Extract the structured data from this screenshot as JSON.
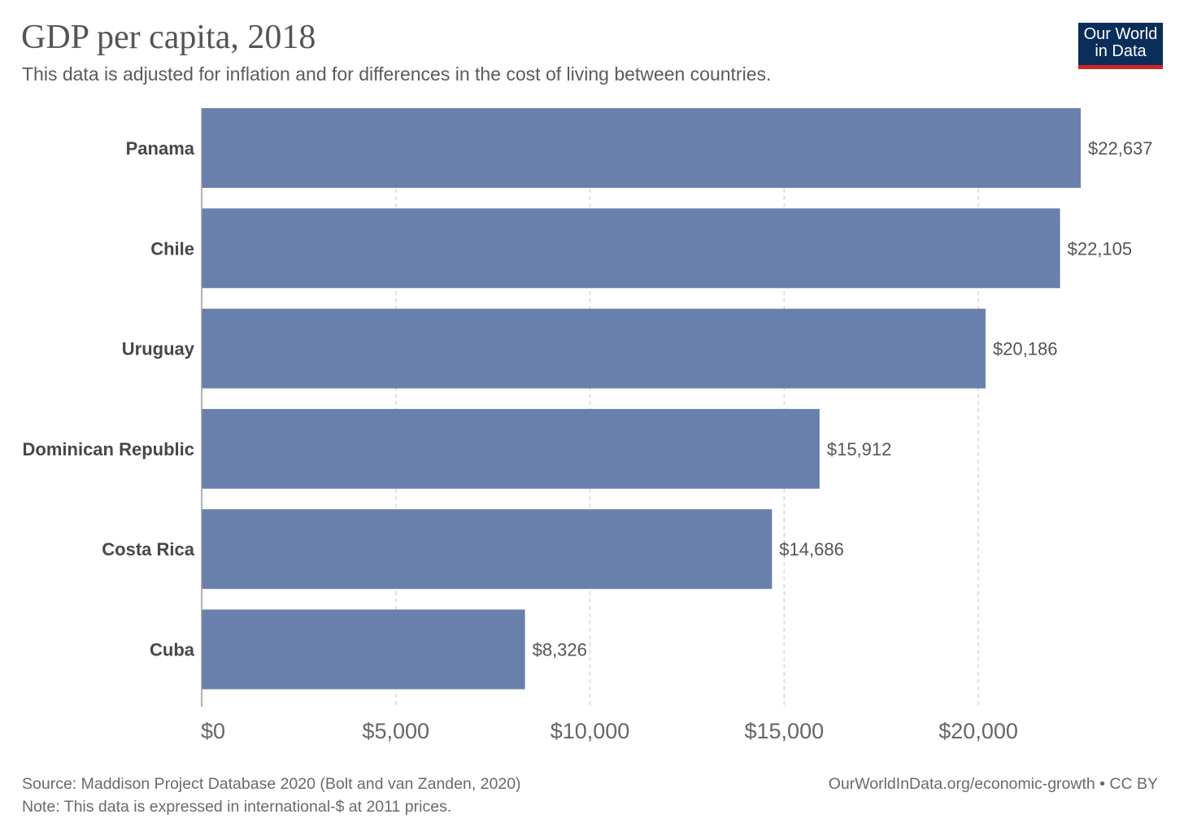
{
  "header": {
    "title": "GDP per capita, 2018",
    "subtitle": "This data is adjusted for inflation and for differences in the cost of living between countries.",
    "logo_line1": "Our World",
    "logo_line2": "in Data"
  },
  "footer": {
    "source": "Source: Maddison Project Database 2020 (Bolt and van Zanden, 2020)",
    "note": "Note: This data is expressed in international-$ at 2011 prices.",
    "link": "OurWorldInData.org/economic-growth • CC BY"
  },
  "colors": {
    "bar": "#6880ab",
    "logo_bg": "#0b2d59",
    "logo_accent": "#ce261e"
  },
  "chart_data": {
    "type": "bar",
    "orientation": "horizontal",
    "title": "GDP per capita, 2018",
    "subtitle": "This data is adjusted for inflation and for differences in the cost of living between countries.",
    "categories": [
      "Panama",
      "Chile",
      "Uruguay",
      "Dominican Republic",
      "Costa Rica",
      "Cuba"
    ],
    "values": [
      22637,
      22105,
      20186,
      15912,
      14686,
      8326
    ],
    "value_labels": [
      "$22,637",
      "$22,105",
      "$20,186",
      "$15,912",
      "$14,686",
      "$8,326"
    ],
    "xticks": [
      0,
      5000,
      10000,
      15000,
      20000
    ],
    "xtick_labels": [
      "$0",
      "$5,000",
      "$10,000",
      "$15,000",
      "$20,000"
    ],
    "xlim": [
      0,
      22637
    ],
    "grid": "vertical dashed"
  }
}
